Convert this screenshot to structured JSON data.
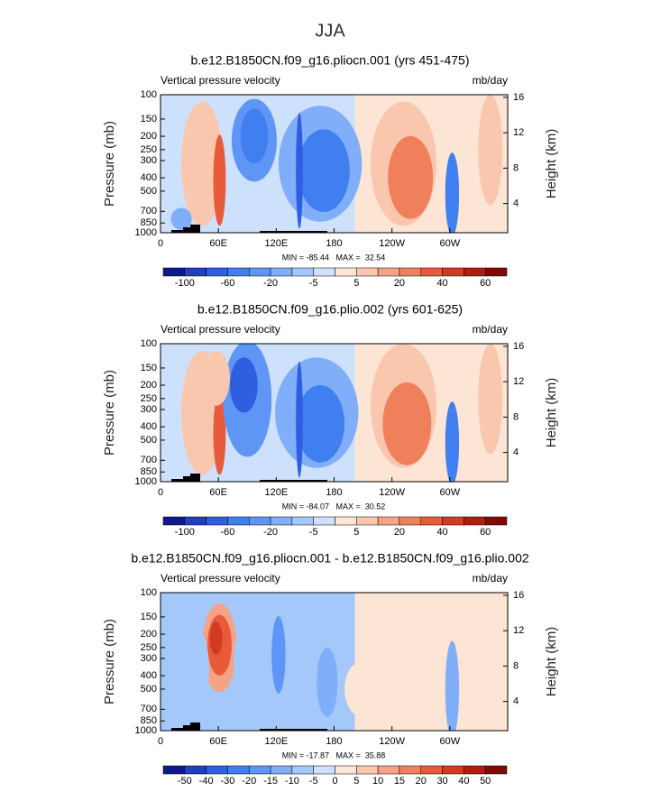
{
  "title": "JJA",
  "chart_data": [
    {
      "type": "contour",
      "title": "b.e12.B1850CN.f09_g16.pliocn.001 (yrs 451-475)",
      "subtitle_left": "Vertical pressure velocity",
      "subtitle_right": "mb/day",
      "ylabel": "Pressure (mb)",
      "y2label": "Height (km)",
      "xlim": [
        0,
        360
      ],
      "xticks": [
        0,
        {
          "value": 60,
          "label": "60E"
        },
        {
          "value": 120,
          "label": "120E"
        },
        180,
        {
          "value": 240,
          "label": "120W"
        },
        {
          "value": 300,
          "label": "60W"
        }
      ],
      "ylim": [
        1000,
        100
      ],
      "yscale": "log",
      "yticks": [
        100,
        150,
        200,
        250,
        300,
        400,
        500,
        700,
        850,
        1000
      ],
      "y2lim": [
        0.7,
        16.3
      ],
      "y2ticks": [
        4,
        8,
        12,
        16
      ],
      "stats": "MIN = -85.44   MAX =  32.54",
      "colorbar": {
        "colors": [
          "#0d1a8c",
          "#1f3fbf",
          "#2f5fe0",
          "#3f7ff0",
          "#5f96f5",
          "#80aef8",
          "#a5c8fa",
          "#cde0fc",
          "#fde5d5",
          "#f9c7ae",
          "#f5a385",
          "#f0805c",
          "#e85b3a",
          "#d23a22",
          "#b01e10",
          "#800a05"
        ],
        "levels": [
          -100,
          null,
          -60,
          null,
          -20,
          null,
          -5,
          null,
          5,
          null,
          20,
          null,
          40,
          null,
          60
        ]
      }
    },
    {
      "type": "contour",
      "title": "b.e12.B1850CN.f09_g16.plio.002 (yrs 601-625)",
      "subtitle_left": "Vertical pressure velocity",
      "subtitle_right": "mb/day",
      "ylabel": "Pressure (mb)",
      "y2label": "Height (km)",
      "xlim": [
        0,
        360
      ],
      "xticks": [
        0,
        {
          "value": 60,
          "label": "60E"
        },
        {
          "value": 120,
          "label": "120E"
        },
        180,
        {
          "value": 240,
          "label": "120W"
        },
        {
          "value": 300,
          "label": "60W"
        }
      ],
      "ylim": [
        1000,
        100
      ],
      "yscale": "log",
      "yticks": [
        100,
        150,
        200,
        250,
        300,
        400,
        500,
        700,
        850,
        1000
      ],
      "y2lim": [
        0.7,
        16.3
      ],
      "y2ticks": [
        4,
        8,
        12,
        16
      ],
      "stats": "MIN = -84.07   MAX =  30.52",
      "colorbar": {
        "colors": [
          "#0d1a8c",
          "#1f3fbf",
          "#2f5fe0",
          "#3f7ff0",
          "#5f96f5",
          "#80aef8",
          "#a5c8fa",
          "#cde0fc",
          "#fde5d5",
          "#f9c7ae",
          "#f5a385",
          "#f0805c",
          "#e85b3a",
          "#d23a22",
          "#b01e10",
          "#800a05"
        ],
        "levels": [
          -100,
          null,
          -60,
          null,
          -20,
          null,
          -5,
          null,
          5,
          null,
          20,
          null,
          40,
          null,
          60
        ]
      }
    },
    {
      "type": "contour",
      "title": "b.e12.B1850CN.f09_g16.pliocn.001 - b.e12.B1850CN.f09_g16.plio.002",
      "subtitle_left": "Vertical pressure velocity",
      "subtitle_right": "mb/day",
      "ylabel": "Pressure (mb)",
      "y2label": "Height (km)",
      "xlim": [
        0,
        360
      ],
      "xticks": [
        0,
        {
          "value": 60,
          "label": "60E"
        },
        {
          "value": 120,
          "label": "120E"
        },
        180,
        {
          "value": 240,
          "label": "120W"
        },
        {
          "value": 300,
          "label": "60W"
        }
      ],
      "ylim": [
        1000,
        100
      ],
      "yscale": "log",
      "yticks": [
        100,
        150,
        200,
        250,
        300,
        400,
        500,
        700,
        850,
        1000
      ],
      "y2lim": [
        0.7,
        16.3
      ],
      "y2ticks": [
        4,
        8,
        12,
        16
      ],
      "stats": "MIN = -17.87   MAX =  35.88",
      "colorbar": {
        "colors": [
          "#0d1a8c",
          "#1f3fbf",
          "#2f5fe0",
          "#3f7ff0",
          "#5f96f5",
          "#80aef8",
          "#a5c8fa",
          "#cde0fc",
          "#fde5d5",
          "#f9c7ae",
          "#f5a385",
          "#f0805c",
          "#e85b3a",
          "#d23a22",
          "#b01e10",
          "#800a05"
        ],
        "levels": [
          -50,
          -40,
          -30,
          -20,
          -15,
          -10,
          -5,
          0,
          5,
          10,
          15,
          20,
          30,
          40,
          50
        ]
      }
    }
  ]
}
